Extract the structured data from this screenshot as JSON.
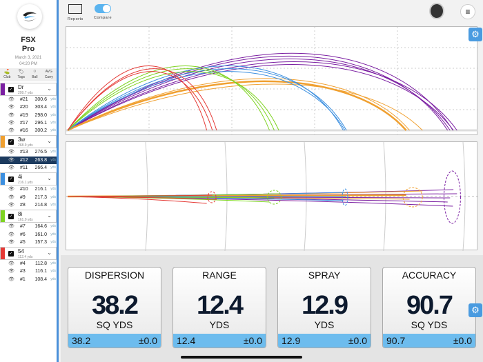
{
  "sidebar": {
    "brand_line1": "FSX",
    "brand_line2": "Pro",
    "date": "March 3, 2021",
    "time": "04:20 PM",
    "filters": [
      {
        "label": "Club",
        "icon": "club-icon"
      },
      {
        "label": "Tags",
        "icon": "tag-icon"
      },
      {
        "label": "Ball",
        "icon": "ball-icon"
      },
      {
        "label": "Carry",
        "icon": "avg-icon",
        "badge": "AVG"
      }
    ],
    "clubs": [
      {
        "name": "Dr",
        "avg": "299.7",
        "unit": "yds",
        "color": "#7b1fa2",
        "shots": [
          {
            "num": "#21",
            "dist": "300.6"
          },
          {
            "num": "#20",
            "dist": "303.4"
          },
          {
            "num": "#19",
            "dist": "298.0"
          },
          {
            "num": "#17",
            "dist": "296.1"
          },
          {
            "num": "#16",
            "dist": "300.2"
          }
        ]
      },
      {
        "name": "3w",
        "avg": "268.9",
        "unit": "yds",
        "color": "#f0a030",
        "shots": [
          {
            "num": "#13",
            "dist": "276.5"
          },
          {
            "num": "#12",
            "dist": "263.8",
            "selected": true
          },
          {
            "num": "#11",
            "dist": "266.4"
          }
        ]
      },
      {
        "name": "4i",
        "avg": "216.1",
        "unit": "yds",
        "color": "#3b8fe0",
        "shots": [
          {
            "num": "#10",
            "dist": "216.1"
          },
          {
            "num": "#9",
            "dist": "217.3"
          },
          {
            "num": "#8",
            "dist": "214.8"
          }
        ]
      },
      {
        "name": "8i",
        "avg": "161.0",
        "unit": "yds",
        "color": "#7ed321",
        "shots": [
          {
            "num": "#7",
            "dist": "164.6"
          },
          {
            "num": "#6",
            "dist": "161.0"
          },
          {
            "num": "#5",
            "dist": "157.3"
          }
        ]
      },
      {
        "name": "54",
        "avg": "112.4",
        "unit": "yds",
        "color": "#e53935",
        "shots": [
          {
            "num": "#4",
            "dist": "112.8"
          },
          {
            "num": "#3",
            "dist": "116.1"
          },
          {
            "num": "#1",
            "dist": "108.4"
          }
        ]
      }
    ],
    "unit": "yds"
  },
  "topbar": {
    "reports_label": "Reports",
    "compare_label": "Compare",
    "compare_on": true
  },
  "stats": [
    {
      "title": "DISPERSION",
      "value": "38.2",
      "unit": "SQ YDS",
      "foot_value": "38.2",
      "foot_delta": "±0.0"
    },
    {
      "title": "RANGE",
      "value": "12.4",
      "unit": "YDS",
      "foot_value": "12.4",
      "foot_delta": "±0.0"
    },
    {
      "title": "SPRAY",
      "value": "12.9",
      "unit": "YDS",
      "foot_value": "12.9",
      "foot_delta": "±0.0"
    },
    {
      "title": "ACCURACY",
      "value": "90.7",
      "unit": "SQ YDS",
      "foot_value": "90.7",
      "foot_delta": "±0.0"
    }
  ]
}
